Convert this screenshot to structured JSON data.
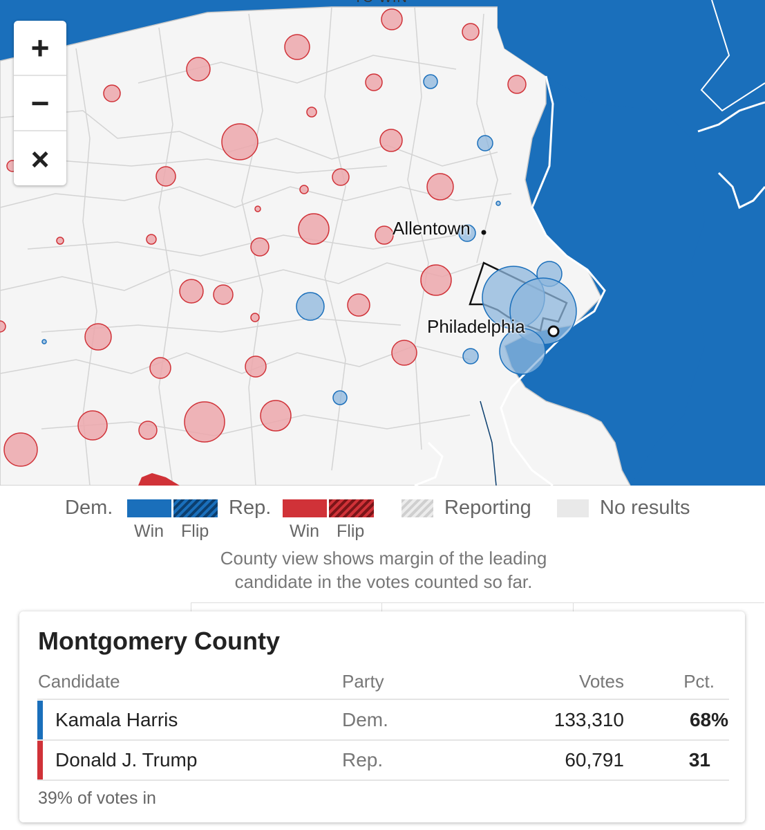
{
  "map": {
    "top_label": "TO WIN",
    "zoom": {
      "in_label": "+",
      "out_label": "−",
      "reset_label": "×"
    },
    "cities": [
      {
        "name": "Allentown"
      },
      {
        "name": "Philadelphia"
      }
    ],
    "colors": {
      "dem": "#1a6fbb",
      "dem_bubble": "#8cb6dc",
      "rep": "#d03238",
      "rep_bubble": "#eca7ac",
      "land": "#f5f5f5",
      "water": "#1a6fbb"
    }
  },
  "legend": {
    "dem_label": "Dem.",
    "rep_label": "Rep.",
    "win_label": "Win",
    "flip_label": "Flip",
    "reporting_label": "Reporting",
    "no_results_label": "No results",
    "note_line1": "County view shows margin of the leading",
    "note_line2": "candidate in the votes counted so far."
  },
  "card": {
    "title": "Montgomery County",
    "headers": {
      "candidate": "Candidate",
      "party": "Party",
      "votes": "Votes",
      "pct": "Pct."
    },
    "rows": [
      {
        "candidate": "Kamala Harris",
        "party": "Dem.",
        "votes": "133,310",
        "pct": "68%",
        "color": "#1a6fbb"
      },
      {
        "candidate": "Donald J. Trump",
        "party": "Rep.",
        "votes": "60,791",
        "pct": "31",
        "color": "#d03238"
      }
    ],
    "footer": "39% of votes in"
  }
}
